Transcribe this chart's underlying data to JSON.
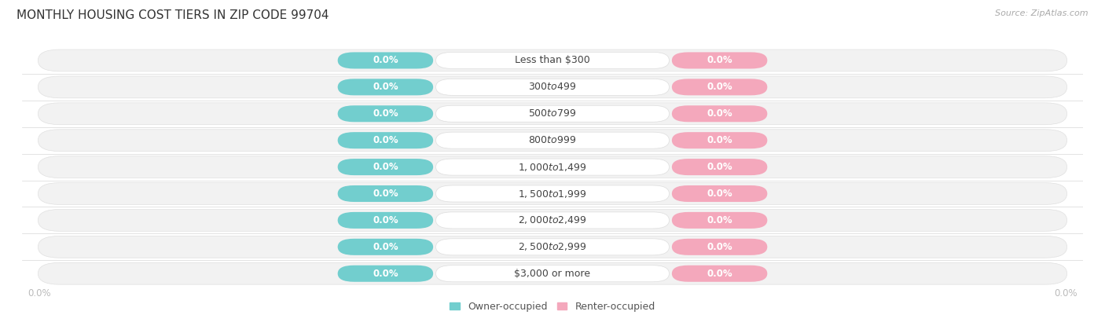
{
  "title": "MONTHLY HOUSING COST TIERS IN ZIP CODE 99704",
  "source": "Source: ZipAtlas.com",
  "categories": [
    "Less than $300",
    "$300 to $499",
    "$500 to $799",
    "$800 to $999",
    "$1,000 to $1,499",
    "$1,500 to $1,999",
    "$2,000 to $2,499",
    "$2,500 to $2,999",
    "$3,000 or more"
  ],
  "owner_values": [
    0.0,
    0.0,
    0.0,
    0.0,
    0.0,
    0.0,
    0.0,
    0.0,
    0.0
  ],
  "renter_values": [
    0.0,
    0.0,
    0.0,
    0.0,
    0.0,
    0.0,
    0.0,
    0.0,
    0.0
  ],
  "owner_color": "#72cece",
  "renter_color": "#f4a8bc",
  "owner_label": "Owner-occupied",
  "renter_label": "Renter-occupied",
  "row_bg_light": "#f5f5f5",
  "row_bg_dark": "#ebebeb",
  "row_bg_separator": "#e0e0e0",
  "label_text_color": "#444444",
  "pct_text_color": "#ffffff",
  "axis_label_color": "#bbbbbb",
  "background_color": "#ffffff",
  "title_fontsize": 11,
  "source_fontsize": 8,
  "cat_fontsize": 9,
  "pct_fontsize": 8.5,
  "legend_fontsize": 9,
  "tick_fontsize": 8.5
}
